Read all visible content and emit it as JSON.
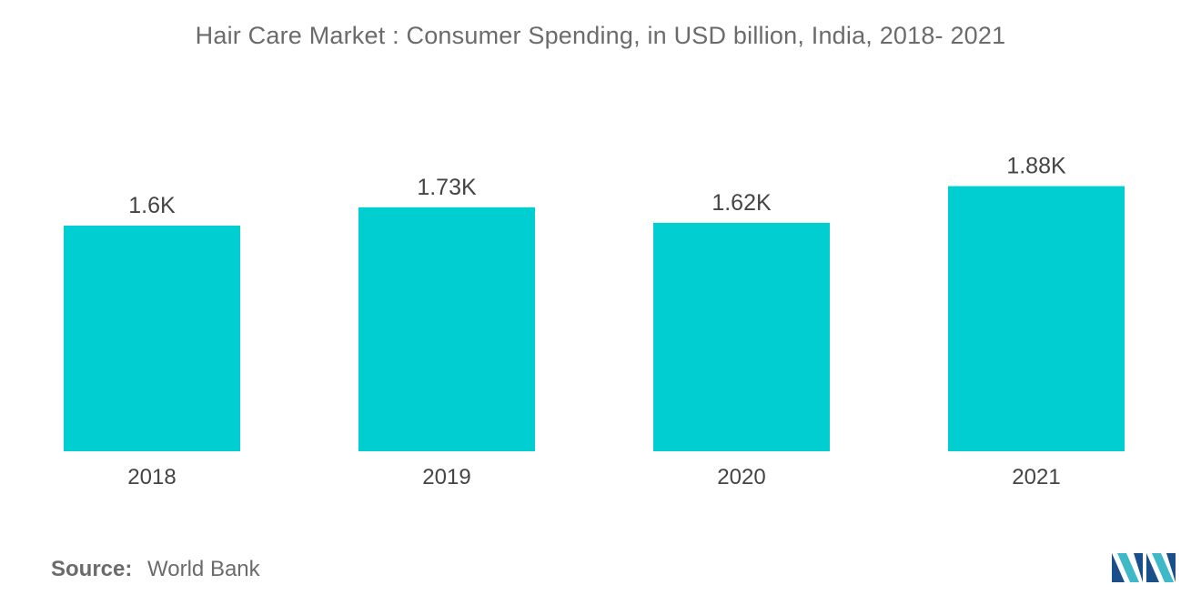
{
  "chart_data": {
    "type": "bar",
    "title": "Hair Care Market : Consumer Spending, in USD billion, India, 2018- 2021",
    "categories": [
      "2018",
      "2019",
      "2020",
      "2021"
    ],
    "values": [
      1.6,
      1.73,
      1.62,
      1.88
    ],
    "data_labels": [
      "1.6K",
      "1.73K",
      "1.62K",
      "1.88K"
    ],
    "xlabel": "",
    "ylabel": "",
    "ylim": [
      0,
      2.0
    ],
    "grid": false,
    "legend": "none",
    "bar_color": "#00ced1"
  },
  "footer": {
    "source_label": "Source:",
    "source_value": "World Bank"
  },
  "logo": {
    "icon": "mordor-intelligence-logo-icon",
    "colors": [
      "#1a4f8a",
      "#3fb8c8"
    ]
  }
}
